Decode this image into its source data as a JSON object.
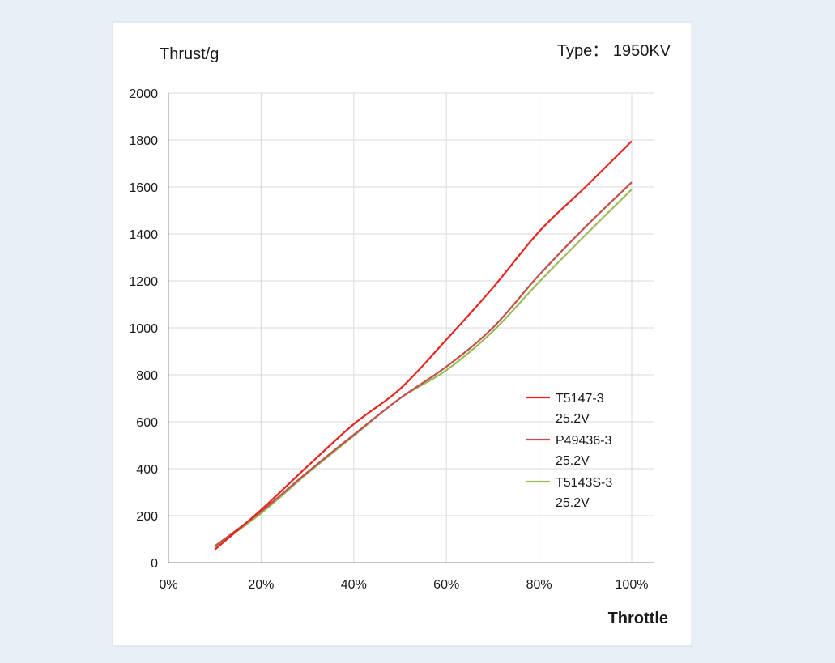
{
  "chart_data": {
    "type": "line",
    "title": "Type： 1950KV",
    "xlabel": "Throttle",
    "ylabel": "Thrust/g",
    "x_tick_labels": [
      "0%",
      "20%",
      "40%",
      "60%",
      "80%",
      "100%"
    ],
    "y_tick_labels": [
      "0",
      "200",
      "400",
      "600",
      "800",
      "1000",
      "1200",
      "1400",
      "1600",
      "1800",
      "2000"
    ],
    "xlim": [
      0,
      100
    ],
    "ylim": [
      0,
      2000
    ],
    "grid": true,
    "legend_position": "right",
    "x": [
      10,
      20,
      30,
      40,
      50,
      60,
      70,
      80,
      90,
      100
    ],
    "series": [
      {
        "name_lines": [
          "T5147-3",
          "25.2V"
        ],
        "color": "#e8231e",
        "values": [
          55,
          225,
          410,
          590,
          740,
          950,
          1170,
          1410,
          1600,
          1795
        ]
      },
      {
        "name_lines": [
          "P49436-3",
          "25.2V"
        ],
        "color": "#c0504d",
        "values": [
          70,
          218,
          385,
          545,
          700,
          835,
          1000,
          1225,
          1430,
          1620
        ]
      },
      {
        "name_lines": [
          "T5143S-3",
          "25.2V"
        ],
        "color": "#9bbb59",
        "values": [
          65,
          210,
          380,
          540,
          700,
          820,
          985,
          1195,
          1395,
          1590
        ]
      }
    ]
  }
}
